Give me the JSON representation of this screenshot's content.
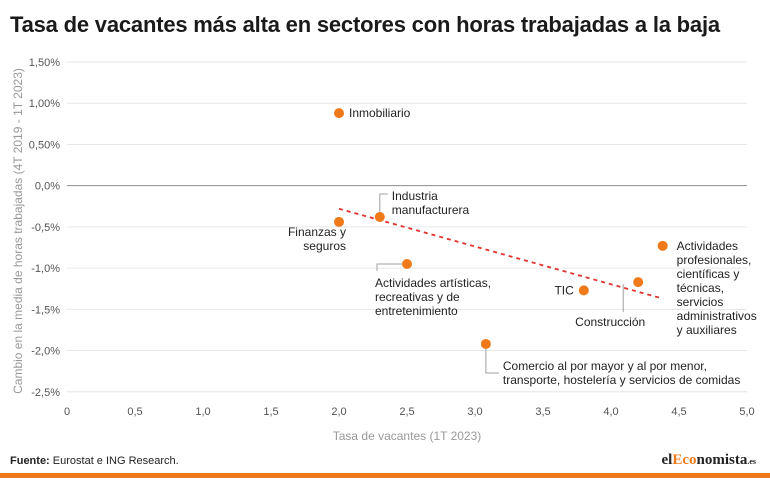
{
  "title": "Tasa de vacantes más alta en sectores con horas trabajadas a la baja",
  "source_label": "Fuente:",
  "source_text": " Eurostat e ING Research.",
  "logo": {
    "prefix": "el",
    "accent": "Eco",
    "suffix": "nomista",
    "tld": ".es"
  },
  "colors": {
    "accent": "#f07a1a",
    "trend": "#e0322f",
    "axis_text": "#999999",
    "grid": "#e6e6e6"
  },
  "chart_data": {
    "type": "scatter",
    "xlabel": "Tasa de vacantes (1T 2023)",
    "ylabel": "Cambio en la media de horas trabajadas (4T 2019 - 1T 2023)",
    "xlim": [
      0,
      5.0
    ],
    "ylim": [
      -2.6,
      1.5
    ],
    "x_ticks": [
      0,
      0.5,
      1.0,
      1.5,
      2.0,
      2.5,
      3.0,
      3.5,
      4.0,
      4.5,
      5.0
    ],
    "x_tick_labels": [
      "0",
      "0,5",
      "1,0",
      "1,5",
      "2,0",
      "2,5",
      "3,0",
      "3,5",
      "4,0",
      "4,5",
      "5,0"
    ],
    "y_ticks": [
      1.5,
      1.0,
      0.5,
      0.0,
      -0.5,
      -1.0,
      -1.5,
      -2.0,
      -2.5
    ],
    "y_tick_labels": [
      "1,50%",
      "1,00%",
      "0,50%",
      "0,0%",
      "-0,5%",
      "-1,0%",
      "-1,5%",
      "-2,0%",
      "-2,5%"
    ],
    "grid": true,
    "points": [
      {
        "lines": [
          "Inmobiliario"
        ],
        "x": 2.0,
        "y": 0.88
      },
      {
        "lines": [
          "Industria",
          "manufacturera"
        ],
        "x": 2.3,
        "y": -0.38
      },
      {
        "lines": [
          "Finanzas y",
          "seguros"
        ],
        "x": 2.0,
        "y": -0.44
      },
      {
        "lines": [
          "Actividades artísticas,",
          "recreativas y de",
          "entretenimiento"
        ],
        "x": 2.5,
        "y": -0.95
      },
      {
        "lines": [
          "Comercio al por mayor y al por menor,",
          "transporte, hostelería y servicios de comidas"
        ],
        "x": 3.08,
        "y": -1.92
      },
      {
        "lines": [
          "TIC"
        ],
        "x": 3.8,
        "y": -1.27
      },
      {
        "lines": [
          "Construcción"
        ],
        "x": 4.2,
        "y": -1.17
      },
      {
        "lines": [
          "Actividades",
          "profesionales,",
          "científicas y",
          "técnicas,",
          "servicios",
          "administrativos",
          "y auxiliares"
        ],
        "x": 4.38,
        "y": -0.73
      }
    ],
    "trendline": {
      "x": [
        2.0,
        4.38
      ],
      "y": [
        -0.28,
        -1.37
      ]
    }
  }
}
